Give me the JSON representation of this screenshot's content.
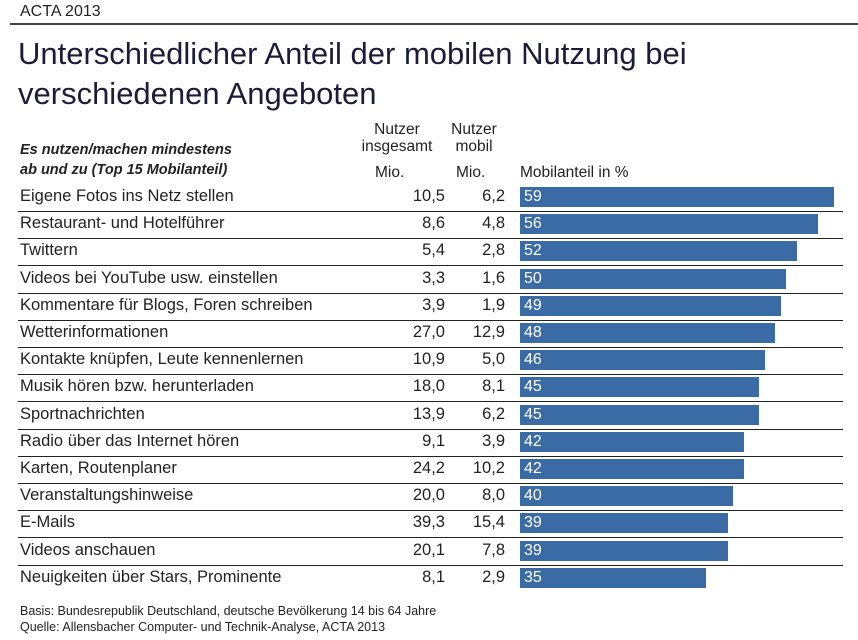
{
  "source_tag": "ACTA 2013",
  "title_line1": "Unterschiedlicher Anteil der mobilen Nutzung bei",
  "title_line2": "verschiedenen Angeboten",
  "subtitle_line1": "Es nutzen/machen mindestens",
  "subtitle_line2": "ab und zu (Top 15 Mobilanteil)",
  "columns": {
    "total_1": "Nutzer",
    "total_2": "insgesamt",
    "mobile_1": "Nutzer",
    "mobile_2": "mobil",
    "unit_total": "Mio.",
    "unit_mobile": "Mio.",
    "share": "Mobilanteil in %"
  },
  "colors": {
    "bar": "#3a6ba5"
  },
  "chart_data": {
    "type": "bar",
    "orientation": "horizontal",
    "xlabel": "Mobilanteil in %",
    "xlim": [
      0,
      59
    ],
    "grid": false,
    "categories": [
      "Eigene Fotos ins Netz stellen",
      "Restaurant- und Hotelführer",
      "Twittern",
      "Videos bei YouTube usw. einstellen",
      "Kommentare für Blogs, Foren schreiben",
      "Wetterinformationen",
      "Kontakte knüpfen, Leute kennenlernen",
      "Musik hören bzw. herunterladen",
      "Sportnachrichten",
      "Radio über das Internet hören",
      "Karten, Routenplaner",
      "Veranstaltungshinweise",
      "E-Mails",
      "Videos anschauen",
      "Neuigkeiten über Stars, Prominente"
    ],
    "users_total": [
      "10,5",
      "8,6",
      "5,4",
      "3,3",
      "3,9",
      "27,0",
      "10,9",
      "18,0",
      "13,9",
      "9,1",
      "24,2",
      "20,0",
      "39,3",
      "20,1",
      "8,1"
    ],
    "users_mobile": [
      "6,2",
      "4,8",
      "2,8",
      "1,6",
      "1,9",
      "12,9",
      "5,0",
      "8,1",
      "6,2",
      "3,9",
      "10,2",
      "8,0",
      "15,4",
      "7,8",
      "2,9"
    ],
    "values": [
      59,
      56,
      52,
      50,
      49,
      48,
      46,
      45,
      45,
      42,
      42,
      40,
      39,
      39,
      35
    ]
  },
  "footer_line1": "Basis: Bundesrepublik Deutschland, deutsche Bevölkerung 14 bis 64 Jahre",
  "footer_line2": "Quelle: Allensbacher Computer- und Technik-Analyse, ACTA 2013"
}
